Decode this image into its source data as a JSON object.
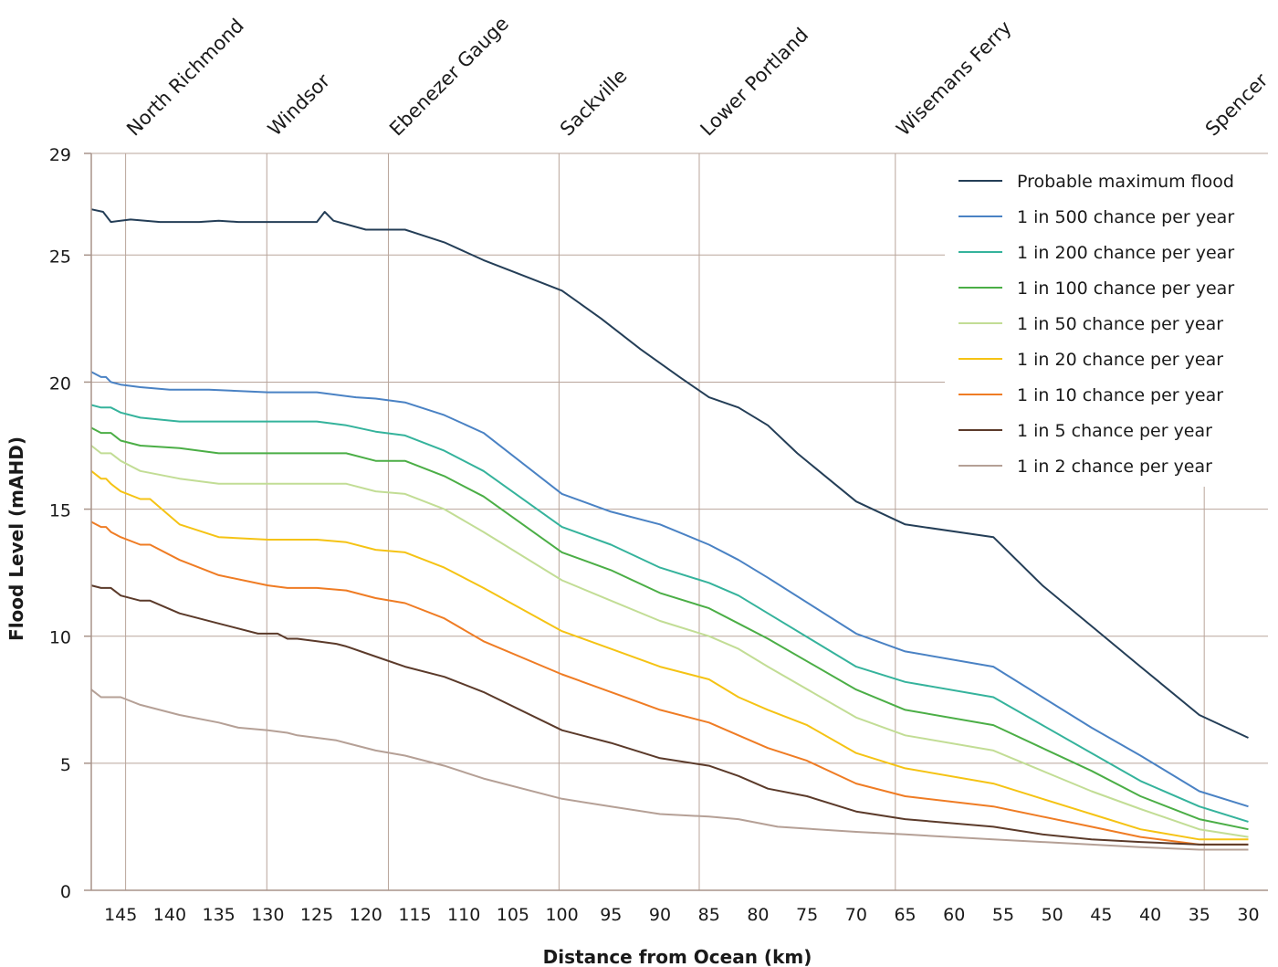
{
  "chart_data": {
    "type": "line",
    "xlabel": "Distance from Ocean (km)",
    "ylabel": "Flood Level (mAHD)",
    "xlim": [
      148,
      28
    ],
    "ylim": [
      0,
      29
    ],
    "x_ticks": [
      145,
      140,
      135,
      130,
      125,
      120,
      115,
      110,
      105,
      100,
      95,
      90,
      85,
      80,
      75,
      70,
      65,
      60,
      55,
      50,
      45,
      40,
      35,
      30
    ],
    "y_ticks": [
      0,
      5,
      10,
      15,
      20,
      25,
      29
    ],
    "grid": true,
    "legend_position": "top-right",
    "locations": [
      {
        "name": "North Richmond",
        "x": 144.5
      },
      {
        "name": "Windsor",
        "x": 130.1
      },
      {
        "name": "Ebenezer Gauge",
        "x": 117.7
      },
      {
        "name": "Sackville",
        "x": 100.3
      },
      {
        "name": "Lower Portland",
        "x": 86.0
      },
      {
        "name": "Wisemans Ferry",
        "x": 66.0
      },
      {
        "name": "Spencer",
        "x": 34.5
      }
    ],
    "series": [
      {
        "name": "Probable maximum flood",
        "color": "#243e57",
        "x": [
          148,
          146.8,
          146,
          144,
          141,
          137,
          135,
          133,
          131,
          129,
          127,
          125,
          124.2,
          123.3,
          120,
          116,
          112,
          108,
          104,
          100,
          96,
          92,
          88,
          85,
          82,
          79,
          76,
          70,
          65,
          56,
          51,
          46,
          41,
          35,
          30
        ],
        "y": [
          26.8,
          26.7,
          26.3,
          26.4,
          26.3,
          26.3,
          26.35,
          26.3,
          26.3,
          26.3,
          26.3,
          26.3,
          26.7,
          26.35,
          26.0,
          26.0,
          25.5,
          24.8,
          24.2,
          23.6,
          22.5,
          21.3,
          20.2,
          19.4,
          19.0,
          18.3,
          17.2,
          15.3,
          14.4,
          13.9,
          12.0,
          10.4,
          8.8,
          6.9,
          6.0
        ]
      },
      {
        "name": "1 in 500 chance per year",
        "color": "#4a82c4",
        "x": [
          148,
          147,
          146.5,
          146,
          145,
          143,
          140,
          136,
          130,
          128,
          125,
          121,
          119,
          116,
          112,
          108,
          100,
          95,
          90,
          85,
          82,
          79,
          70,
          65,
          56,
          51,
          46,
          41,
          35,
          30
        ],
        "y": [
          20.4,
          20.2,
          20.2,
          20.0,
          19.9,
          19.8,
          19.7,
          19.7,
          19.6,
          19.6,
          19.6,
          19.4,
          19.35,
          19.2,
          18.7,
          18.0,
          15.6,
          14.9,
          14.4,
          13.6,
          13.0,
          12.3,
          10.1,
          9.4,
          8.8,
          7.6,
          6.4,
          5.3,
          3.9,
          3.3
        ]
      },
      {
        "name": "1 in 200 chance per year",
        "color": "#35b39c",
        "x": [
          148,
          147,
          146,
          145,
          143,
          139,
          136,
          130,
          125,
          122,
          119,
          116,
          112,
          108,
          100,
          95,
          90,
          85,
          82,
          79,
          70,
          65,
          56,
          51,
          46,
          41,
          35,
          30
        ],
        "y": [
          19.1,
          19.0,
          19.0,
          18.8,
          18.6,
          18.45,
          18.45,
          18.45,
          18.45,
          18.3,
          18.05,
          17.9,
          17.3,
          16.5,
          14.3,
          13.6,
          12.7,
          12.1,
          11.6,
          10.9,
          8.8,
          8.2,
          7.6,
          6.5,
          5.4,
          4.3,
          3.3,
          2.7
        ]
      },
      {
        "name": "1 in 100 chance per year",
        "color": "#4bae46",
        "x": [
          148,
          147,
          146,
          145,
          143,
          139,
          135,
          130,
          125,
          122,
          119,
          116,
          112,
          108,
          100,
          95,
          90,
          85,
          82,
          79,
          70,
          65,
          56,
          51,
          46,
          41,
          35,
          30
        ],
        "y": [
          18.2,
          18.0,
          18.0,
          17.7,
          17.5,
          17.4,
          17.2,
          17.2,
          17.2,
          17.2,
          16.9,
          16.9,
          16.3,
          15.5,
          13.3,
          12.6,
          11.7,
          11.1,
          10.5,
          9.9,
          7.9,
          7.1,
          6.5,
          5.6,
          4.7,
          3.7,
          2.8,
          2.4
        ]
      },
      {
        "name": "1 in 50 chance per year",
        "color": "#c2dd95",
        "x": [
          148,
          147,
          146,
          145,
          143,
          139,
          135,
          130,
          125,
          122,
          119,
          116,
          112,
          108,
          100,
          95,
          90,
          85,
          82,
          79,
          70,
          65,
          56,
          51,
          46,
          41,
          35,
          30
        ],
        "y": [
          17.5,
          17.2,
          17.2,
          16.9,
          16.5,
          16.2,
          16.0,
          16.0,
          16.0,
          16.0,
          15.7,
          15.6,
          15.0,
          14.1,
          12.2,
          11.4,
          10.6,
          10.0,
          9.5,
          8.8,
          6.8,
          6.1,
          5.5,
          4.7,
          3.9,
          3.2,
          2.4,
          2.1
        ]
      },
      {
        "name": "1 in 20 chance per year",
        "color": "#f5c314",
        "x": [
          148,
          147,
          146.5,
          146,
          145,
          143,
          142,
          139,
          135,
          130,
          125,
          122,
          119,
          116,
          112,
          108,
          100,
          95,
          90,
          85,
          82,
          79,
          75,
          70,
          65,
          56,
          51,
          46,
          41,
          35,
          30
        ],
        "y": [
          16.5,
          16.2,
          16.2,
          16.0,
          15.7,
          15.4,
          15.4,
          14.4,
          13.9,
          13.8,
          13.8,
          13.7,
          13.4,
          13.3,
          12.7,
          11.9,
          10.2,
          9.5,
          8.8,
          8.3,
          7.6,
          7.1,
          6.5,
          5.4,
          4.8,
          4.2,
          3.6,
          3.0,
          2.4,
          2.0,
          2.0
        ]
      },
      {
        "name": "1 in 10 chance per year",
        "color": "#ef7c24",
        "x": [
          148,
          147,
          146.5,
          146,
          145,
          143,
          142,
          139,
          135,
          130,
          128,
          125,
          122,
          119,
          116,
          112,
          108,
          100,
          95,
          90,
          85,
          82,
          79,
          75,
          70,
          65,
          56,
          51,
          46,
          41,
          35,
          30
        ],
        "y": [
          14.5,
          14.3,
          14.3,
          14.1,
          13.9,
          13.6,
          13.6,
          13.0,
          12.4,
          12.0,
          11.9,
          11.9,
          11.8,
          11.5,
          11.3,
          10.7,
          9.8,
          8.5,
          7.8,
          7.1,
          6.6,
          6.1,
          5.6,
          5.1,
          4.2,
          3.7,
          3.3,
          2.9,
          2.5,
          2.1,
          1.8,
          1.8
        ]
      },
      {
        "name": "1 in 5 chance per year",
        "color": "#5b3a2a",
        "x": [
          148,
          147,
          146,
          145,
          143,
          142,
          139,
          135,
          131,
          129,
          128,
          127,
          125,
          123,
          122,
          119,
          116,
          112,
          108,
          100,
          95,
          90,
          85,
          82,
          79,
          75,
          70,
          65,
          56,
          51,
          46,
          41,
          35,
          30
        ],
        "y": [
          12.0,
          11.9,
          11.9,
          11.6,
          11.4,
          11.4,
          10.9,
          10.5,
          10.1,
          10.1,
          9.9,
          9.9,
          9.8,
          9.7,
          9.6,
          9.2,
          8.8,
          8.4,
          7.8,
          6.3,
          5.8,
          5.2,
          4.9,
          4.5,
          4.0,
          3.7,
          3.1,
          2.8,
          2.5,
          2.2,
          2.0,
          1.9,
          1.8,
          1.8
        ]
      },
      {
        "name": "1 in 2 chance per year",
        "color": "#b5a096",
        "x": [
          148,
          147,
          146,
          145,
          143,
          139,
          135,
          133,
          130,
          128,
          127,
          125,
          123,
          122,
          119,
          116,
          112,
          108,
          100,
          95,
          90,
          85,
          82,
          78,
          70,
          65,
          56,
          51,
          46,
          41,
          35,
          30
        ],
        "y": [
          7.9,
          7.6,
          7.6,
          7.6,
          7.3,
          6.9,
          6.6,
          6.4,
          6.3,
          6.2,
          6.1,
          6.0,
          5.9,
          5.8,
          5.5,
          5.3,
          4.9,
          4.4,
          3.6,
          3.3,
          3.0,
          2.9,
          2.8,
          2.5,
          2.3,
          2.2,
          2.0,
          1.9,
          1.8,
          1.7,
          1.6,
          1.6
        ]
      }
    ]
  }
}
